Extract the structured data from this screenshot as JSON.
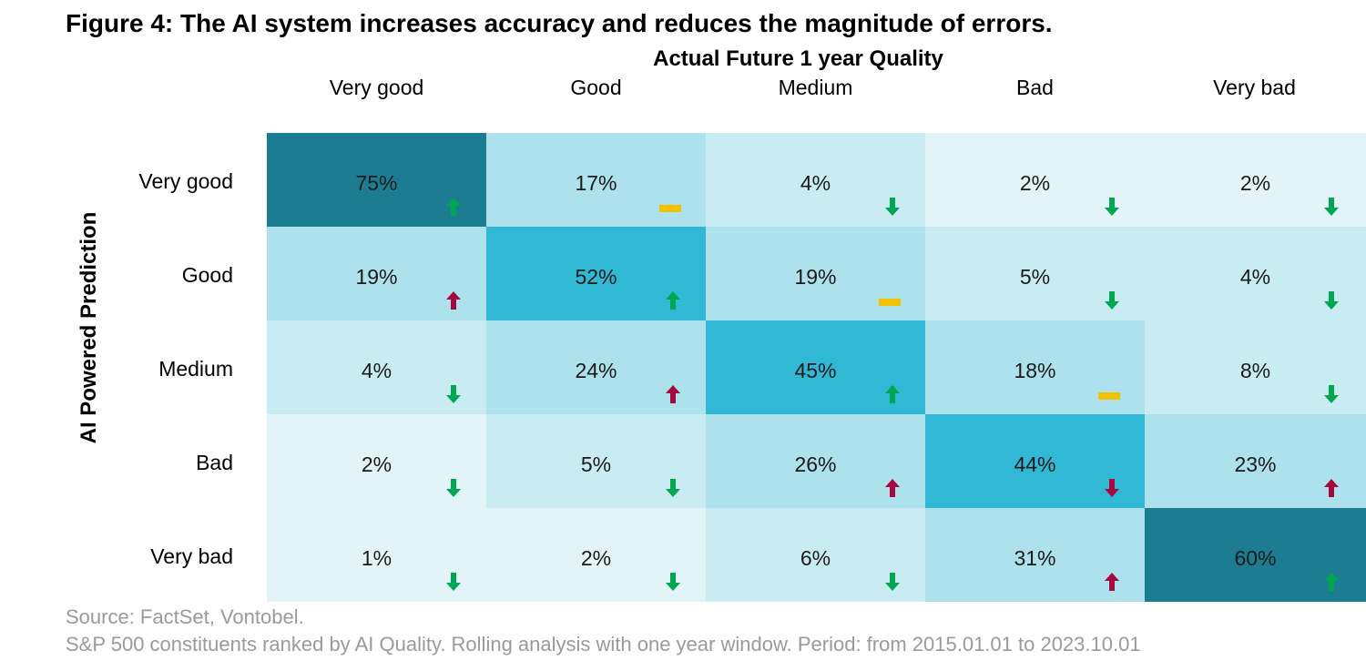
{
  "chart_data": {
    "type": "heatmap",
    "title": "Figure 4: The AI system increases accuracy and reduces the magnitude of errors.",
    "xlabel": "Actual Future 1 year Quality",
    "ylabel": "AI Powered Prediction",
    "columns": [
      "Very good",
      "Good",
      "Medium",
      "Bad",
      "Very bad"
    ],
    "rows": [
      "Very good",
      "Good",
      "Medium",
      "Bad",
      "Very bad"
    ],
    "values": [
      [
        75,
        17,
        4,
        2,
        2
      ],
      [
        19,
        52,
        19,
        5,
        4
      ],
      [
        4,
        24,
        45,
        18,
        8
      ],
      [
        2,
        5,
        26,
        44,
        23
      ],
      [
        1,
        2,
        6,
        31,
        60
      ]
    ],
    "labels": [
      [
        "75%",
        "17%",
        "4%",
        "2%",
        "2%"
      ],
      [
        "19%",
        "52%",
        "19%",
        "5%",
        "4%"
      ],
      [
        "4%",
        "24%",
        "45%",
        "18%",
        "8%"
      ],
      [
        "2%",
        "5%",
        "26%",
        "44%",
        "23%"
      ],
      [
        "1%",
        "2%",
        "6%",
        "31%",
        "60%"
      ]
    ],
    "trends": [
      [
        "up-good",
        "flat",
        "down-good",
        "down-good",
        "down-good"
      ],
      [
        "up-bad",
        "up-good",
        "flat",
        "down-good",
        "down-good"
      ],
      [
        "down-good",
        "up-bad",
        "up-good",
        "flat",
        "down-good"
      ],
      [
        "down-good",
        "down-good",
        "up-bad",
        "down-bad",
        "up-bad"
      ],
      [
        "down-good",
        "down-good",
        "down-good",
        "up-bad",
        "up-good"
      ]
    ],
    "colors": {
      "darkest": "#1c7d92",
      "strong": "#31b8d5",
      "medium": "#ade2ec",
      "light": "#c9ecf3",
      "lightest": "#e3f4f8",
      "arrow_green": "#00a650",
      "arrow_red": "#a6093d",
      "flat_yellow": "#f2c200"
    }
  },
  "footer": {
    "source": "Source: FactSet, Vontobel.",
    "note": "S&P 500 constituents ranked by AI Quality. Rolling analysis with one year window. Period: from 2015.01.01 to 2023.10.01"
  }
}
